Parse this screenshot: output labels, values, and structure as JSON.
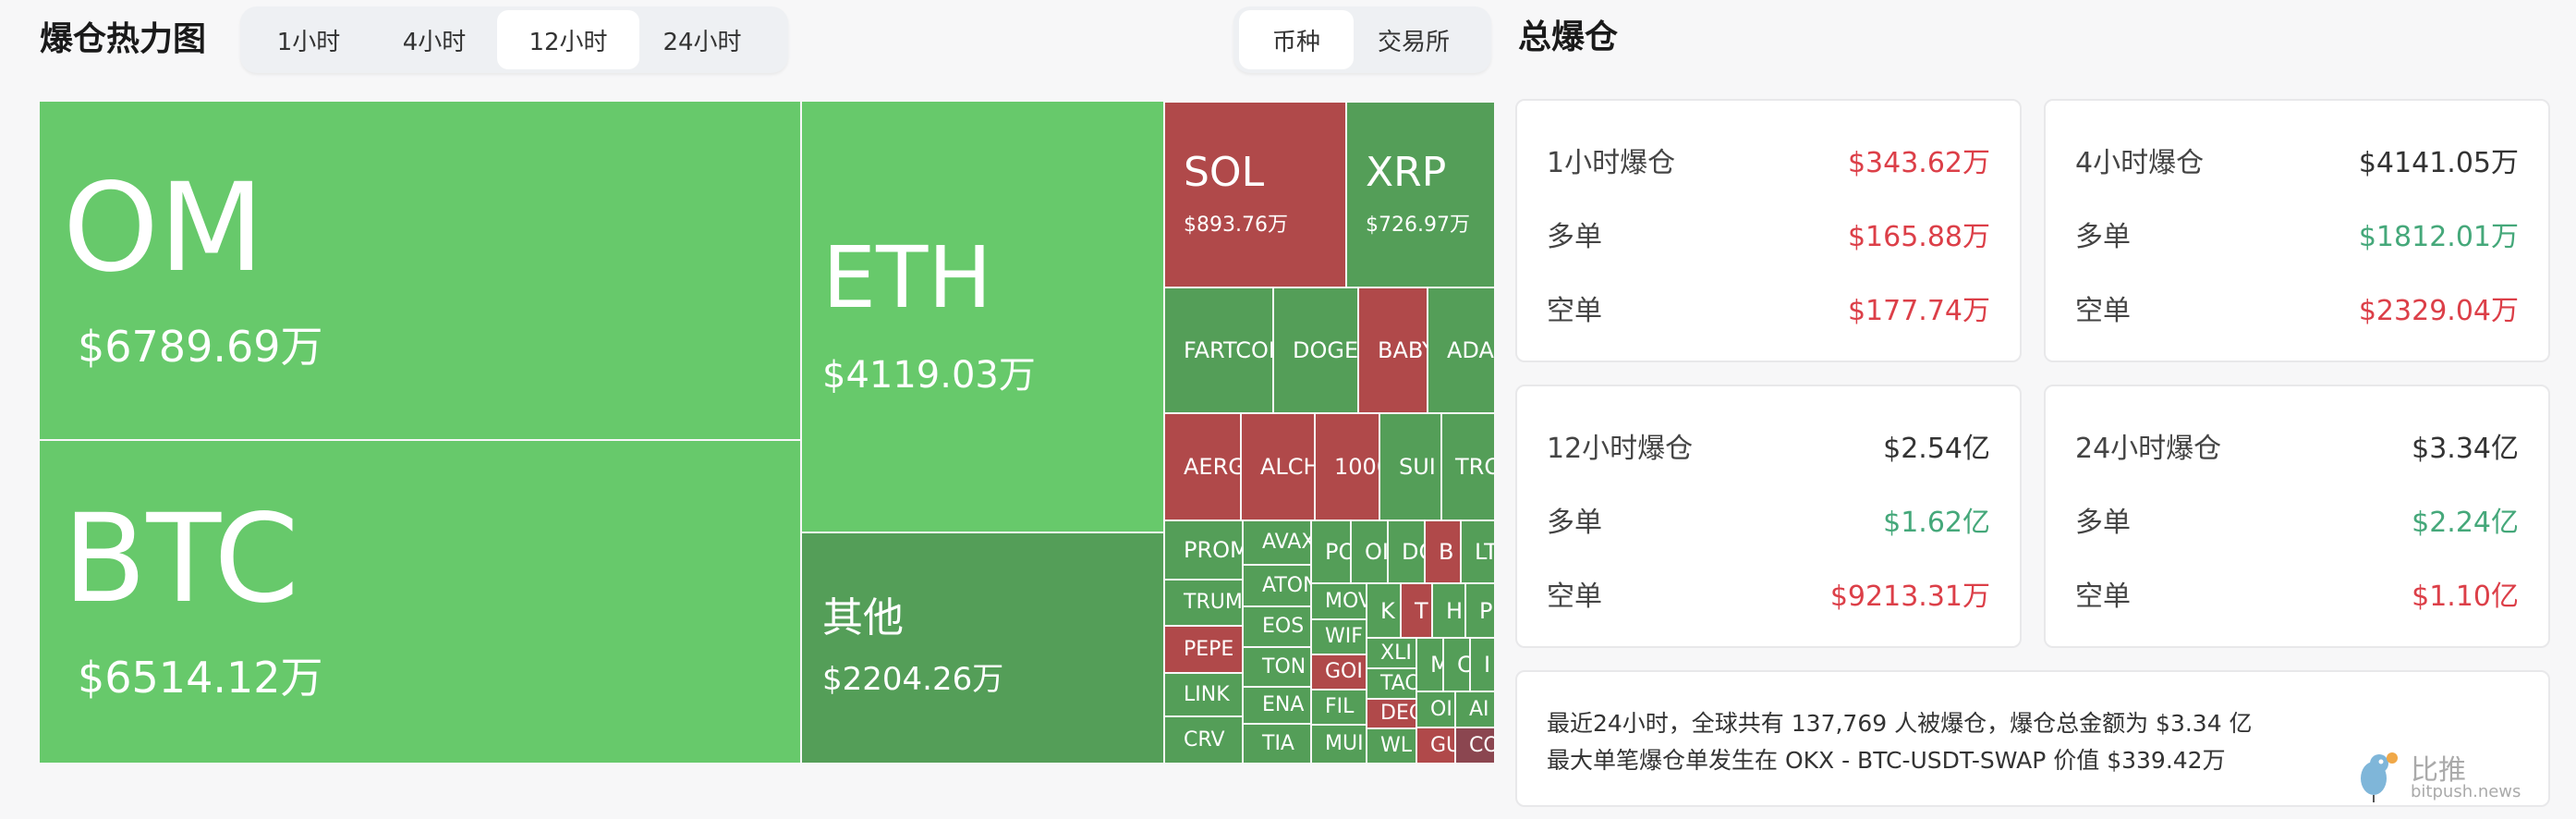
{
  "header": {
    "title": "爆仓热力图",
    "time_tabs": [
      {
        "label": "1小时",
        "active": false
      },
      {
        "label": "4小时",
        "active": false
      },
      {
        "label": "12小时",
        "active": true
      },
      {
        "label": "24小时",
        "active": false
      }
    ],
    "view_toggle": [
      {
        "label": "币种",
        "active": true
      },
      {
        "label": "交易所",
        "active": false
      }
    ]
  },
  "colors": {
    "large_green": "#67c96b",
    "green": "#549e58",
    "red": "#b0494a",
    "dark_red": "#8b4650",
    "text_red": "#dc3f48",
    "text_green": "#45a87a"
  },
  "treemap": {
    "tiles": [
      {
        "name": "OM",
        "value": "$6789.69万",
        "color": "large_green"
      },
      {
        "name": "BTC",
        "value": "$6514.12万",
        "color": "large_green"
      },
      {
        "name": "ETH",
        "value": "$4119.03万",
        "color": "large_green"
      },
      {
        "name": "其他",
        "value": "$2204.26万",
        "color": "green"
      },
      {
        "name": "SOL",
        "value": "$893.76万",
        "color": "red"
      },
      {
        "name": "XRP",
        "value": "$726.97万",
        "color": "green"
      },
      {
        "name": "FARTCOI",
        "color": "green"
      },
      {
        "name": "DOGE",
        "color": "green"
      },
      {
        "name": "BABY",
        "color": "red"
      },
      {
        "name": "ADA",
        "color": "green"
      },
      {
        "name": "AERG",
        "color": "red"
      },
      {
        "name": "ALCH",
        "color": "red"
      },
      {
        "name": "1000",
        "color": "red"
      },
      {
        "name": "SUI",
        "color": "green"
      },
      {
        "name": "TRO",
        "color": "green"
      },
      {
        "name": "PROM",
        "color": "green"
      },
      {
        "name": "TRUM",
        "color": "green"
      },
      {
        "name": "PEPE",
        "color": "red"
      },
      {
        "name": "LINK",
        "color": "green"
      },
      {
        "name": "CRV",
        "color": "green"
      },
      {
        "name": "AVAX",
        "color": "green"
      },
      {
        "name": "ATON",
        "color": "green"
      },
      {
        "name": "EOS",
        "color": "green"
      },
      {
        "name": "TON",
        "color": "green"
      },
      {
        "name": "ENA",
        "color": "green"
      },
      {
        "name": "TIA",
        "color": "green"
      },
      {
        "name": "PO",
        "color": "green"
      },
      {
        "name": "OI",
        "color": "green"
      },
      {
        "name": "DO",
        "color": "green"
      },
      {
        "name": "B",
        "color": "red"
      },
      {
        "name": "LT",
        "color": "green"
      },
      {
        "name": "MOV",
        "color": "green"
      },
      {
        "name": "WIF",
        "color": "green"
      },
      {
        "name": "GOI",
        "color": "red"
      },
      {
        "name": "FIL",
        "color": "green"
      },
      {
        "name": "MUI",
        "color": "green"
      },
      {
        "name": "K",
        "color": "green"
      },
      {
        "name": "T",
        "color": "red"
      },
      {
        "name": "H",
        "color": "green"
      },
      {
        "name": "P",
        "color": "green"
      },
      {
        "name": "XLI",
        "color": "green"
      },
      {
        "name": "TAC",
        "color": "green"
      },
      {
        "name": "DEC",
        "color": "red"
      },
      {
        "name": "WL",
        "color": "green"
      },
      {
        "name": "M",
        "color": "green"
      },
      {
        "name": "C",
        "color": "green"
      },
      {
        "name": "I",
        "color": "green"
      },
      {
        "name": "OI",
        "color": "green"
      },
      {
        "name": "AI",
        "color": "green"
      },
      {
        "name": "GU",
        "color": "red"
      },
      {
        "name": "CO",
        "color": "dark_red"
      }
    ]
  },
  "totals": {
    "title": "总爆仓",
    "cards": [
      {
        "label": "1小时爆仓",
        "total": "$343.62万",
        "total_color": "text_red",
        "long_label": "多单",
        "long": "$165.88万",
        "long_color": "text_red",
        "short_label": "空单",
        "short": "$177.74万",
        "short_color": "text_red"
      },
      {
        "label": "4小时爆仓",
        "total": "$4141.05万",
        "total_color": "default",
        "long_label": "多单",
        "long": "$1812.01万",
        "long_color": "text_green",
        "short_label": "空单",
        "short": "$2329.04万",
        "short_color": "text_red"
      },
      {
        "label": "12小时爆仓",
        "total": "$2.54亿",
        "total_color": "default",
        "long_label": "多单",
        "long": "$1.62亿",
        "long_color": "text_green",
        "short_label": "空单",
        "short": "$9213.31万",
        "short_color": "text_red"
      },
      {
        "label": "24小时爆仓",
        "total": "$3.34亿",
        "total_color": "default",
        "long_label": "多单",
        "long": "$2.24亿",
        "long_color": "text_green",
        "short_label": "空单",
        "short": "$1.10亿",
        "short_color": "text_red"
      }
    ],
    "summary_line1": "最近24小时，全球共有 137,769 人被爆仓，爆仓总金额为 $3.34 亿",
    "summary_line2": "最大单笔爆仓单发生在 OKX - BTC-USDT-SWAP 价值 $339.42万",
    "watermark": {
      "name": "比推",
      "domain": "bitpush.news"
    }
  }
}
